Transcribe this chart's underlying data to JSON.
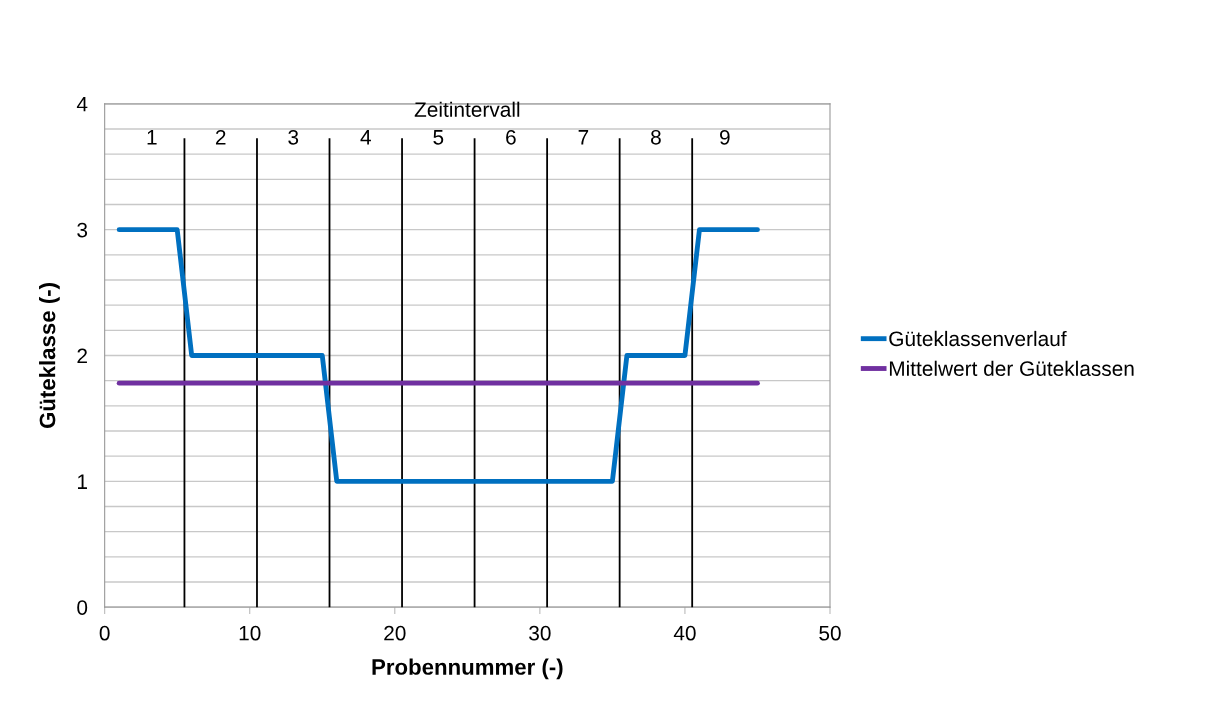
{
  "chart_data": {
    "type": "line",
    "xlabel": "Probennummer (-)",
    "ylabel": "Güteklasse (-)",
    "x": [
      1,
      2,
      3,
      4,
      5,
      6,
      7,
      8,
      9,
      10,
      11,
      12,
      13,
      14,
      15,
      16,
      17,
      18,
      19,
      20,
      21,
      22,
      23,
      24,
      25,
      26,
      27,
      28,
      29,
      30,
      31,
      32,
      33,
      34,
      35,
      36,
      37,
      38,
      39,
      40,
      41,
      42,
      43,
      44,
      45
    ],
    "series": [
      {
        "name": "Güteklassenverlauf",
        "color": "#0070c0",
        "values": [
          3,
          3,
          3,
          3,
          3,
          2,
          2,
          2,
          2,
          2,
          2,
          2,
          2,
          2,
          2,
          1,
          1,
          1,
          1,
          1,
          1,
          1,
          1,
          1,
          1,
          1,
          1,
          1,
          1,
          1,
          1,
          1,
          1,
          1,
          1,
          2,
          2,
          2,
          2,
          2,
          3,
          3,
          3,
          3,
          3
        ]
      },
      {
        "name": "Mittelwert der Güteklassen",
        "color": "#7030a0",
        "x": [
          1,
          45
        ],
        "values": [
          1.78,
          1.78
        ]
      }
    ],
    "xlim": [
      0,
      50
    ],
    "xticks": [
      0,
      10,
      20,
      30,
      40,
      50
    ],
    "ylim": [
      0,
      4
    ],
    "yticks": [
      0,
      {
        "value": 0.2,
        "label": null
      },
      {
        "value": 0.4,
        "label": null
      },
      {
        "value": 0.6,
        "label": null
      },
      {
        "value": 0.8,
        "label": null
      },
      1,
      {
        "value": 1.2,
        "label": null
      },
      {
        "value": 1.4,
        "label": null
      },
      {
        "value": 1.6,
        "label": null
      },
      {
        "value": 1.8,
        "label": null
      },
      2,
      {
        "value": 2.2,
        "label": null
      },
      {
        "value": 2.4,
        "label": null
      },
      {
        "value": 2.6,
        "label": null
      },
      {
        "value": 2.8,
        "label": null
      },
      3,
      {
        "value": 3.2,
        "label": null
      },
      {
        "value": 3.4,
        "label": null
      },
      {
        "value": 3.6,
        "label": null
      },
      {
        "value": 3.8,
        "label": null
      },
      4
    ],
    "grid": "y",
    "legend": "right",
    "marker": "none",
    "line_style": "solid",
    "ref_lines": [
      {
        "axis": "x",
        "value": 5.5,
        "color": "#000000"
      },
      {
        "axis": "x",
        "value": 10.5,
        "color": "#000000"
      },
      {
        "axis": "x",
        "value": 15.5,
        "color": "#000000"
      },
      {
        "axis": "x",
        "value": 20.5,
        "color": "#000000"
      },
      {
        "axis": "x",
        "value": 25.5,
        "color": "#000000"
      },
      {
        "axis": "x",
        "value": 30.5,
        "color": "#000000"
      },
      {
        "axis": "x",
        "value": 35.5,
        "color": "#000000"
      },
      {
        "axis": "x",
        "value": 40.5,
        "color": "#000000"
      }
    ],
    "annotations": [
      "Zeitintervall",
      "1",
      "2",
      "3",
      "4",
      "5",
      "6",
      "7",
      "8",
      "9"
    ]
  }
}
